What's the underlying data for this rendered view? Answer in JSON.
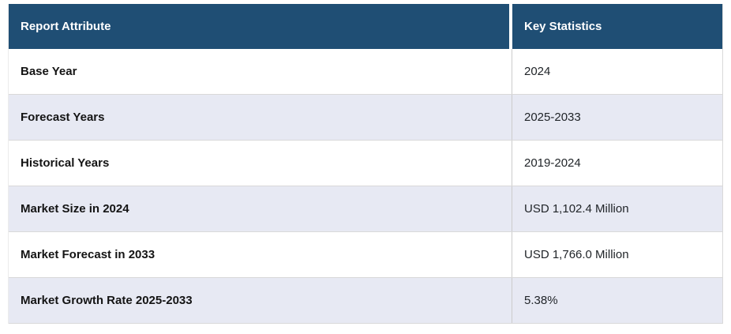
{
  "chart_data": {
    "type": "table",
    "columns": [
      "Report Attribute",
      "Key Statistics"
    ],
    "rows": [
      [
        "Base Year",
        "2024"
      ],
      [
        "Forecast Years",
        "2025-2033"
      ],
      [
        "Historical Years",
        "2019-2024"
      ],
      [
        "Market Size in 2024",
        "USD 1,102.4 Million"
      ],
      [
        "Market Forecast in 2033",
        "USD 1,766.0 Million"
      ],
      [
        "Market Growth Rate 2025-2033",
        "5.38%"
      ]
    ]
  },
  "colors": {
    "header_bg": "#1f4e74",
    "header_text": "#ffffff",
    "alt_row_bg": "#e7e9f3",
    "row_bg": "#ffffff",
    "row_border": "#d9d9d9",
    "column_divider": "#cccccc",
    "attribute_text": "#141414",
    "value_text": "#212529"
  }
}
